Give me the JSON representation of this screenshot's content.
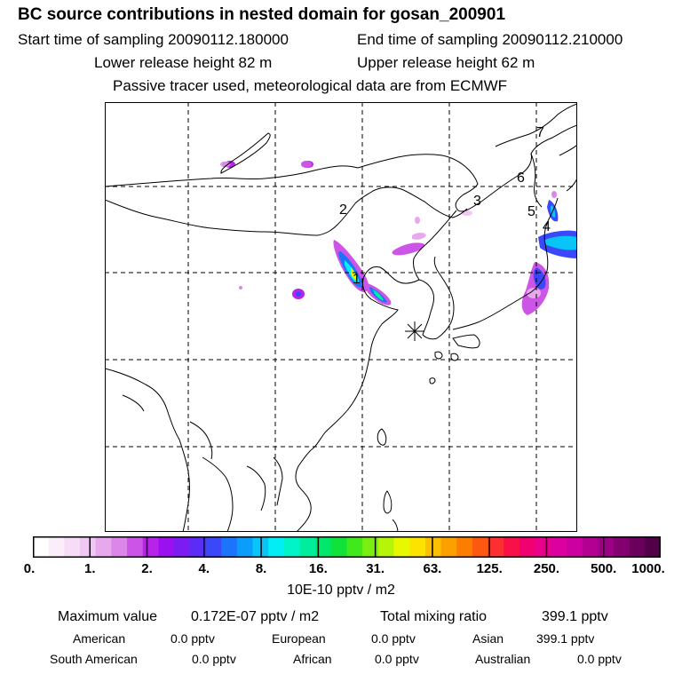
{
  "title": "BC  source contributions in nested domain for gosan_200901",
  "header": {
    "start_label": "Start time of sampling 20090112.180000",
    "end_label": "End time of sampling 20090112.210000",
    "lower_label": "Lower release height   82 m",
    "upper_label": "Upper release height   62 m",
    "tracer_label": "Passive tracer used, meteorological data are from ECMWF"
  },
  "map": {
    "markers": [
      "1",
      "2",
      "3",
      "4",
      "5",
      "6",
      "7"
    ],
    "receptor_name": "gosan"
  },
  "colorbar": {
    "ticks": [
      "0.",
      "1.",
      "2.",
      "4.",
      "8.",
      "16.",
      "31.",
      "63.",
      "125.",
      "250.",
      "500.",
      "1000."
    ],
    "colors": [
      "#ffffff",
      "#fbeefb",
      "#f6dcf6",
      "#f0c6f2",
      "#e8a8ee",
      "#dc86ea",
      "#cc55e8",
      "#b822ea",
      "#9a10ee",
      "#7a1cf2",
      "#5a2cf6",
      "#3a48fa",
      "#1c74fa",
      "#0c9cfa",
      "#08c4f8",
      "#00eef4",
      "#00f4c8",
      "#00ee9c",
      "#00e86a",
      "#10e23a",
      "#40e81c",
      "#7aee10",
      "#b6f408",
      "#e8f800",
      "#fce400",
      "#fcc000",
      "#fca000",
      "#fc7e00",
      "#fc5810",
      "#fc3030",
      "#f81048",
      "#f00070",
      "#e8008c",
      "#dc00a0",
      "#cc00a0",
      "#b40092",
      "#9c0084",
      "#820070",
      "#6a005c",
      "#520048"
    ],
    "unit_label": "10E-10 pptv / m2"
  },
  "stats": {
    "max_label": "Maximum value",
    "max_value": "0.172E-07 pptv / m2",
    "total_label": "Total mixing ratio",
    "total_value": "399.1 pptv"
  },
  "regions": [
    {
      "name": "American",
      "value": "0.0 pptv"
    },
    {
      "name": "European",
      "value": "0.0 pptv"
    },
    {
      "name": "Asian",
      "value": "399.1 pptv"
    },
    {
      "name": "South American",
      "value": "0.0 pptv"
    },
    {
      "name": "African",
      "value": "0.0 pptv"
    },
    {
      "name": "Australian",
      "value": "0.0 pptv"
    }
  ]
}
